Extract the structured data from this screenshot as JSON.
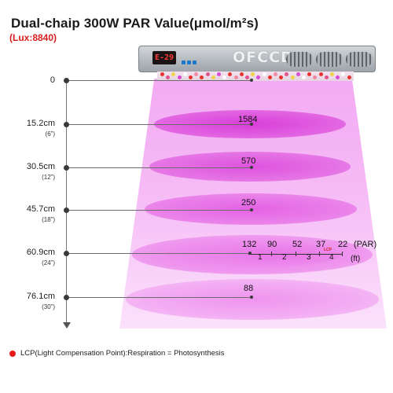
{
  "title": "Dual-chaip 300W PAR Value(μmol/m²s)",
  "lux": "(Lux:8840)",
  "lamp": {
    "display": "E-29",
    "logo": "OFCCD"
  },
  "rows": [
    {
      "distance": "0",
      "inches": "",
      "par": ""
    },
    {
      "distance": "15.2cm",
      "inches": "(6”)",
      "par": "1584"
    },
    {
      "distance": "30.5cm",
      "inches": "(12”)",
      "par": "570"
    },
    {
      "distance": "45.7cm",
      "inches": "(18”)",
      "par": "250"
    },
    {
      "distance": "60.9cm",
      "inches": "(24”)",
      "par": "132"
    },
    {
      "distance": "76.1cm",
      "inches": "(30”)",
      "par": "88"
    }
  ],
  "footprint": {
    "par_values": [
      "90",
      "52",
      "37",
      "22"
    ],
    "par_unit": "(PAR)",
    "ft_values": [
      "1",
      "2",
      "3",
      "4"
    ],
    "ft_unit": "(ft)",
    "lcp_mark": "LCP"
  },
  "legend": {
    "text": "LCP(Light Compensation Point):Respiration = Photosynthesis",
    "dot_color": "#e8191a"
  },
  "colors": {
    "beam": "#ee82ee",
    "ellipse": "#e05ce0",
    "accent": "#d81e1e"
  }
}
